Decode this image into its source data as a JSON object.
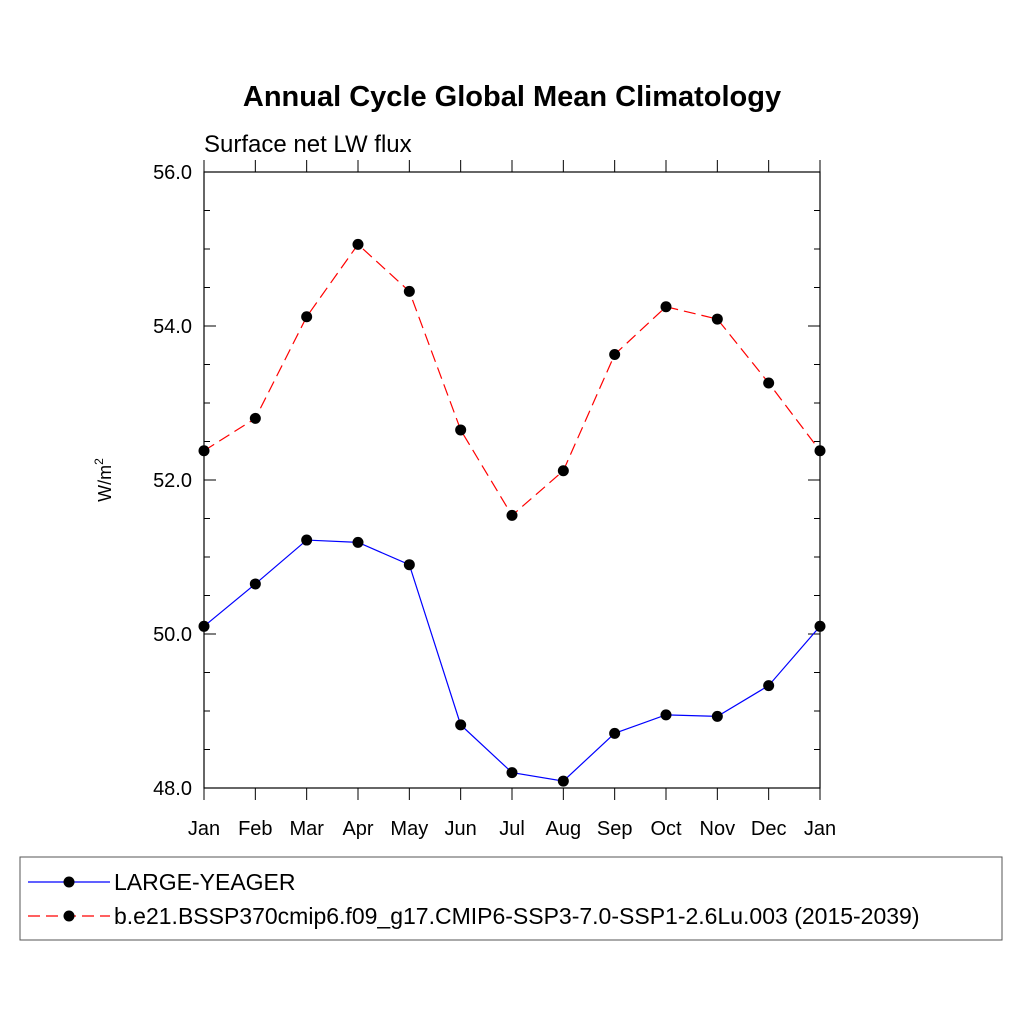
{
  "chart_data": {
    "type": "line",
    "title": "Annual Cycle Global Mean Climatology",
    "subtitle": "Surface net LW flux",
    "ylabel": "W/m",
    "ylabel_sup": "2",
    "categories": [
      "Jan",
      "Feb",
      "Mar",
      "Apr",
      "May",
      "Jun",
      "Jul",
      "Aug",
      "Sep",
      "Oct",
      "Nov",
      "Dec",
      "Jan"
    ],
    "ylim": [
      48.0,
      56.0
    ],
    "yticks": [
      48.0,
      50.0,
      52.0,
      54.0,
      56.0
    ],
    "ytick_labels": [
      "48.0",
      "50.0",
      "52.0",
      "54.0",
      "56.0"
    ],
    "grid": false,
    "legend_position": "bottom",
    "series": [
      {
        "name": "LARGE-YEAGER",
        "color": "#0000ff",
        "dash": "solid",
        "values": [
          50.1,
          50.65,
          51.22,
          51.19,
          50.9,
          48.82,
          48.2,
          48.09,
          48.71,
          48.95,
          48.93,
          49.33,
          50.1
        ]
      },
      {
        "name": "b.e21.BSSP370cmip6.f09_g17.CMIP6-SSP3-7.0-SSP1-2.6Lu.003 (2015-2039)",
        "color": "#ff0000",
        "dash": "dashed",
        "values": [
          52.38,
          52.8,
          54.12,
          55.06,
          54.45,
          52.65,
          51.54,
          52.12,
          53.63,
          54.25,
          54.09,
          53.26,
          52.38
        ]
      }
    ]
  }
}
